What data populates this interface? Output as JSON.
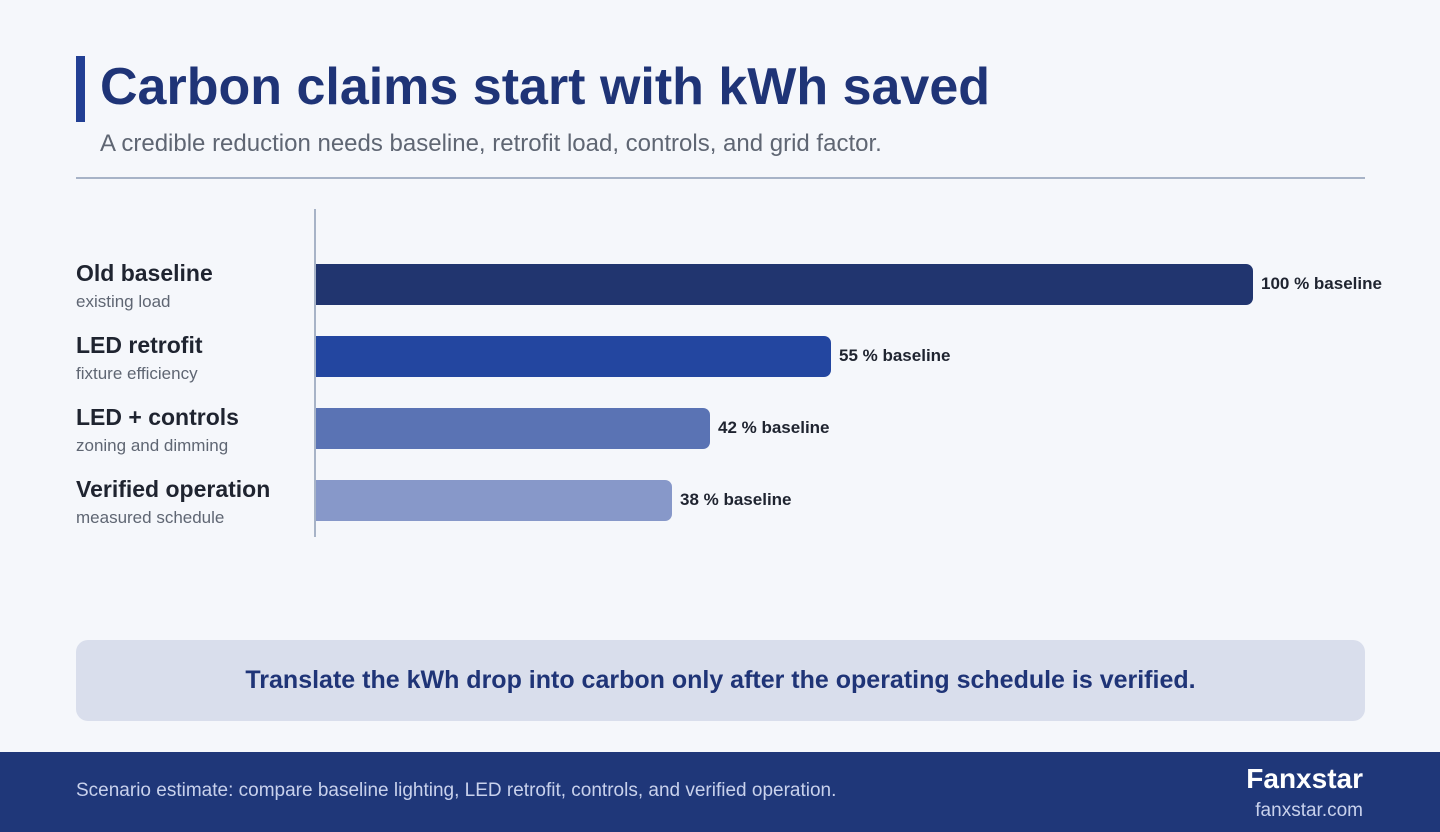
{
  "header": {
    "title": "Carbon claims start with kWh saved",
    "subtitle": "A credible reduction needs baseline, retrofit load, controls, and grid factor."
  },
  "chart_data": {
    "type": "bar",
    "orientation": "horizontal",
    "categories": [
      "Old baseline",
      "LED retrofit",
      "LED + controls",
      "Verified operation"
    ],
    "category_subtitles": [
      "existing load",
      "fixture efficiency",
      "zoning and dimming",
      "measured schedule"
    ],
    "values": [
      100,
      55,
      42,
      38
    ],
    "value_suffix": " % baseline",
    "value_labels": [
      "100 % baseline",
      "55 % baseline",
      "42 % baseline",
      "38 % baseline"
    ],
    "colors": [
      "#21356f",
      "#2346a0",
      "#5a73b4",
      "#8798c9"
    ],
    "xlim": [
      0,
      100
    ],
    "grid": false,
    "legend": "none"
  },
  "callout": {
    "text": "Translate the kWh drop into carbon only after the operating schedule is verified."
  },
  "footer": {
    "note": "Scenario estimate: compare baseline lighting, LED retrofit, controls, and verified operation.",
    "brand_name": "Fanxstar",
    "brand_url": "fanxstar.com"
  }
}
